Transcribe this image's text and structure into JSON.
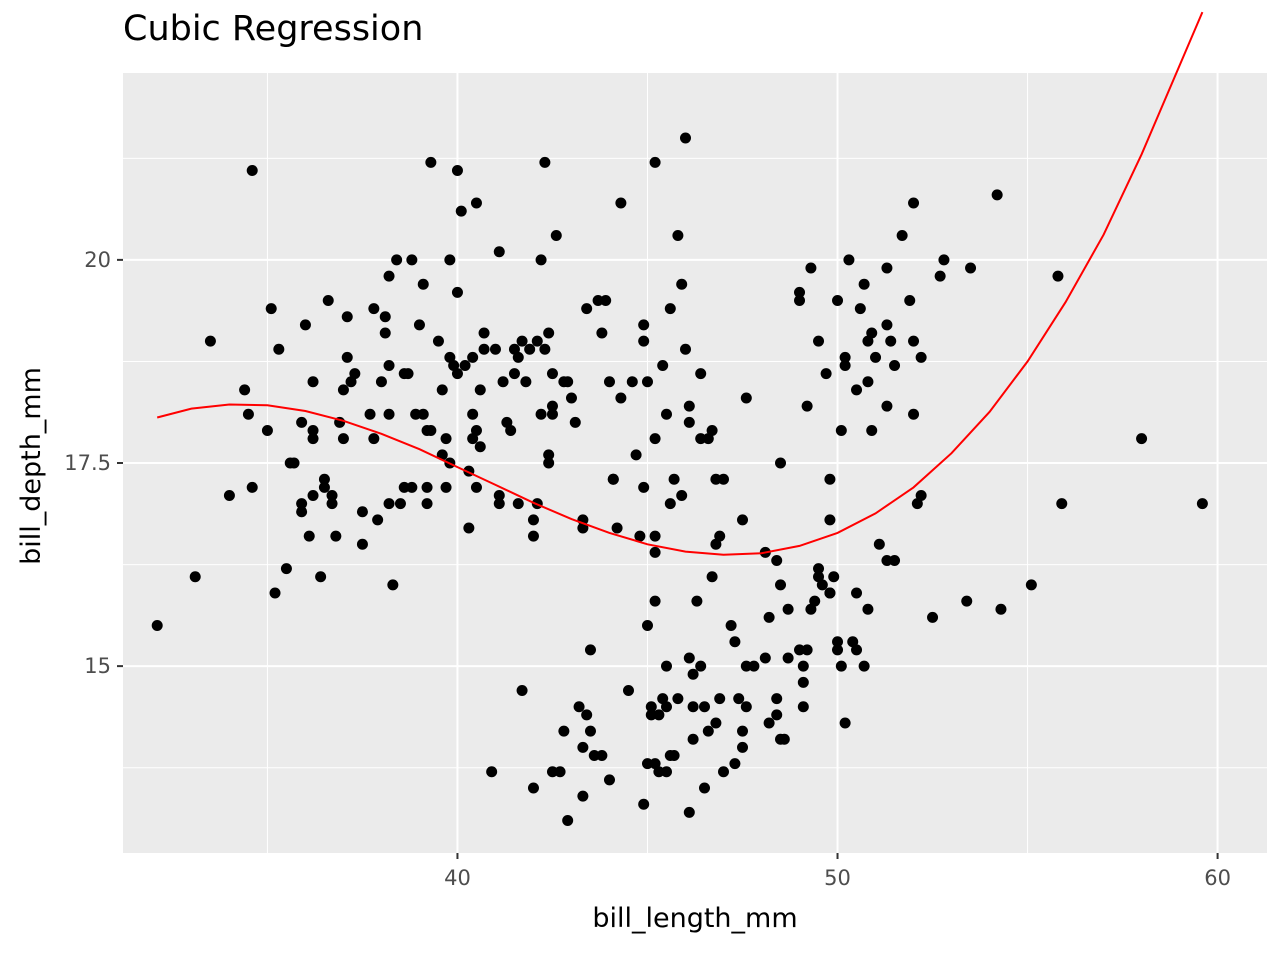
{
  "chart_data": {
    "type": "scatter",
    "title": "Cubic Regression",
    "xlabel": "bill_length_mm",
    "ylabel": "bill_depth_mm",
    "xlim": [
      31.2,
      61.3
    ],
    "ylim": [
      12.7,
      22.3
    ],
    "xticks": [
      40,
      50,
      60
    ],
    "xtick_labels": [
      "40",
      "50",
      "60"
    ],
    "yticks": [
      15,
      17.5,
      20
    ],
    "ytick_labels": [
      "15",
      "17.5",
      "20"
    ],
    "grid": true,
    "legend": "none",
    "colors": {
      "panel": "#ebebeb",
      "grid": "#ffffff",
      "points": "#000000",
      "fit_line": "#ff0000"
    },
    "points": [
      [
        32.1,
        15.5
      ],
      [
        33.1,
        16.1
      ],
      [
        33.5,
        19.0
      ],
      [
        34.0,
        17.1
      ],
      [
        34.4,
        18.4
      ],
      [
        34.5,
        18.1
      ],
      [
        34.6,
        21.1
      ],
      [
        34.6,
        17.2
      ],
      [
        35.0,
        17.9
      ],
      [
        35.1,
        19.4
      ],
      [
        35.2,
        15.9
      ],
      [
        35.3,
        18.9
      ],
      [
        35.5,
        16.2
      ],
      [
        35.6,
        17.5
      ],
      [
        35.7,
        17.5
      ],
      [
        35.9,
        16.9
      ],
      [
        35.9,
        17.0
      ],
      [
        35.9,
        18.0
      ],
      [
        36.0,
        19.2
      ],
      [
        36.1,
        16.6
      ],
      [
        36.2,
        17.8
      ],
      [
        36.2,
        17.9
      ],
      [
        36.2,
        18.5
      ],
      [
        36.2,
        17.1
      ],
      [
        36.4,
        16.1
      ],
      [
        36.5,
        17.3
      ],
      [
        36.5,
        17.2
      ],
      [
        36.6,
        19.5
      ],
      [
        36.7,
        17.1
      ],
      [
        36.7,
        17.0
      ],
      [
        36.8,
        16.6
      ],
      [
        36.9,
        18.0
      ],
      [
        37.0,
        17.8
      ],
      [
        37.0,
        18.4
      ],
      [
        37.1,
        19.3
      ],
      [
        37.1,
        18.8
      ],
      [
        37.2,
        18.5
      ],
      [
        37.3,
        18.6
      ],
      [
        37.5,
        16.5
      ],
      [
        37.5,
        16.9
      ],
      [
        37.7,
        18.1
      ],
      [
        37.8,
        19.4
      ],
      [
        37.9,
        16.8
      ],
      [
        37.8,
        17.8
      ],
      [
        38.0,
        18.5
      ],
      [
        38.1,
        19.3
      ],
      [
        38.1,
        19.1
      ],
      [
        38.2,
        17.0
      ],
      [
        38.2,
        18.7
      ],
      [
        38.3,
        16.0
      ],
      [
        38.2,
        19.8
      ],
      [
        38.2,
        18.1
      ],
      [
        38.4,
        20.0
      ],
      [
        38.5,
        17.0
      ],
      [
        38.6,
        17.2
      ],
      [
        38.6,
        18.6
      ],
      [
        38.7,
        18.6
      ],
      [
        38.8,
        17.2
      ],
      [
        38.8,
        20.0
      ],
      [
        38.9,
        18.1
      ],
      [
        39.0,
        19.2
      ],
      [
        39.1,
        18.1
      ],
      [
        39.2,
        17.9
      ],
      [
        39.2,
        17.2
      ],
      [
        39.2,
        17.0
      ],
      [
        39.3,
        21.2
      ],
      [
        39.3,
        17.9
      ],
      [
        39.5,
        19.0
      ],
      [
        39.6,
        17.6
      ],
      [
        39.6,
        18.4
      ],
      [
        39.7,
        17.8
      ],
      [
        39.7,
        17.2
      ],
      [
        39.8,
        20.0
      ],
      [
        39.8,
        17.5
      ],
      [
        39.8,
        18.8
      ],
      [
        39.9,
        18.7
      ],
      [
        40.0,
        18.6
      ],
      [
        40.0,
        19.6
      ],
      [
        40.0,
        21.1
      ],
      [
        40.1,
        20.6
      ],
      [
        40.2,
        18.7
      ],
      [
        40.3,
        17.4
      ],
      [
        40.3,
        16.7
      ],
      [
        40.4,
        17.8
      ],
      [
        40.4,
        18.8
      ],
      [
        40.4,
        18.1
      ],
      [
        40.5,
        20.7
      ],
      [
        40.5,
        17.2
      ],
      [
        40.5,
        17.9
      ],
      [
        40.6,
        17.7
      ],
      [
        40.6,
        18.4
      ],
      [
        40.7,
        18.9
      ],
      [
        40.7,
        19.1
      ],
      [
        41.0,
        18.9
      ],
      [
        41.1,
        20.1
      ],
      [
        41.1,
        17.1
      ],
      [
        41.1,
        17.0
      ],
      [
        41.2,
        18.5
      ],
      [
        41.3,
        18.0
      ],
      [
        41.4,
        17.9
      ],
      [
        41.5,
        18.6
      ],
      [
        41.5,
        18.9
      ],
      [
        41.6,
        17.0
      ],
      [
        41.6,
        18.8
      ],
      [
        41.7,
        19.0
      ],
      [
        41.8,
        18.5
      ],
      [
        41.9,
        18.9
      ],
      [
        42.0,
        16.8
      ],
      [
        42.0,
        16.6
      ],
      [
        42.1,
        19.0
      ],
      [
        42.1,
        17.0
      ],
      [
        42.2,
        20.0
      ],
      [
        42.3,
        18.9
      ],
      [
        42.3,
        21.2
      ],
      [
        42.4,
        19.1
      ],
      [
        42.4,
        17.6
      ],
      [
        42.4,
        17.5
      ],
      [
        42.5,
        18.2
      ],
      [
        42.5,
        18.1
      ],
      [
        42.5,
        18.6
      ],
      [
        42.6,
        20.3
      ],
      [
        42.8,
        18.5
      ],
      [
        42.9,
        18.5
      ],
      [
        43.0,
        18.3
      ],
      [
        43.1,
        18.0
      ],
      [
        43.4,
        19.4
      ],
      [
        43.7,
        19.5
      ],
      [
        43.8,
        19.1
      ],
      [
        43.9,
        19.5
      ],
      [
        44.0,
        18.5
      ],
      [
        44.1,
        17.3
      ],
      [
        44.1,
        17.3
      ],
      [
        44.2,
        16.7
      ],
      [
        44.3,
        20.7
      ],
      [
        44.3,
        18.3
      ],
      [
        44.6,
        18.5
      ],
      [
        44.7,
        17.6
      ],
      [
        44.8,
        16.6
      ],
      [
        44.9,
        19.2
      ],
      [
        44.9,
        19.0
      ],
      [
        45.0,
        18.5
      ],
      [
        45.2,
        21.2
      ],
      [
        45.5,
        18.1
      ],
      [
        45.9,
        19.7
      ],
      [
        46.1,
        18.0
      ],
      [
        46.8,
        17.3
      ],
      [
        41.7,
        14.7
      ],
      [
        42.0,
        13.5
      ],
      [
        42.5,
        13.7
      ],
      [
        42.7,
        13.7
      ],
      [
        42.8,
        14.2
      ],
      [
        42.9,
        13.1
      ],
      [
        43.2,
        14.5
      ],
      [
        43.3,
        13.4
      ],
      [
        43.3,
        14.0
      ],
      [
        43.4,
        14.4
      ],
      [
        43.5,
        14.2
      ],
      [
        43.5,
        15.2
      ],
      [
        43.6,
        13.9
      ],
      [
        43.8,
        13.9
      ],
      [
        44.0,
        13.6
      ],
      [
        44.5,
        14.7
      ],
      [
        44.9,
        13.3
      ],
      [
        45.0,
        13.8
      ],
      [
        45.1,
        14.5
      ],
      [
        45.1,
        14.4
      ],
      [
        45.2,
        15.8
      ],
      [
        45.2,
        13.8
      ],
      [
        45.3,
        13.7
      ],
      [
        45.4,
        14.6
      ],
      [
        45.5,
        13.7
      ],
      [
        45.5,
        15.0
      ],
      [
        45.6,
        13.9
      ],
      [
        45.7,
        13.9
      ],
      [
        45.8,
        14.6
      ],
      [
        46.1,
        15.1
      ],
      [
        46.2,
        14.5
      ],
      [
        46.2,
        14.1
      ],
      [
        46.4,
        15.0
      ],
      [
        46.5,
        14.5
      ],
      [
        46.5,
        13.5
      ],
      [
        46.6,
        14.2
      ],
      [
        46.8,
        14.3
      ],
      [
        46.9,
        14.6
      ],
      [
        47.0,
        13.7
      ],
      [
        47.2,
        15.5
      ],
      [
        47.3,
        15.3
      ],
      [
        47.4,
        14.6
      ],
      [
        47.5,
        14.2
      ],
      [
        47.5,
        14.0
      ],
      [
        47.6,
        14.5
      ],
      [
        47.6,
        15.0
      ],
      [
        47.8,
        15.0
      ],
      [
        48.1,
        15.1
      ],
      [
        48.2,
        14.3
      ],
      [
        48.4,
        14.6
      ],
      [
        48.4,
        14.4
      ],
      [
        48.5,
        14.1
      ],
      [
        48.6,
        14.1
      ],
      [
        48.7,
        15.1
      ],
      [
        48.7,
        15.7
      ],
      [
        49.0,
        15.2
      ],
      [
        49.1,
        15.0
      ],
      [
        49.1,
        14.8
      ],
      [
        49.1,
        14.5
      ],
      [
        49.2,
        15.2
      ],
      [
        49.3,
        15.7
      ],
      [
        49.4,
        15.8
      ],
      [
        49.5,
        16.2
      ],
      [
        49.5,
        16.1
      ],
      [
        49.6,
        16.0
      ],
      [
        49.8,
        15.9
      ],
      [
        49.9,
        16.1
      ],
      [
        50.0,
        15.2
      ],
      [
        50.0,
        15.3
      ],
      [
        50.1,
        15.0
      ],
      [
        50.2,
        14.3
      ],
      [
        50.4,
        15.3
      ],
      [
        50.5,
        15.2
      ],
      [
        50.5,
        15.9
      ],
      [
        50.7,
        15.0
      ],
      [
        50.8,
        15.7
      ],
      [
        51.1,
        16.5
      ],
      [
        51.3,
        16.3
      ],
      [
        51.5,
        16.3
      ],
      [
        52.5,
        15.6
      ],
      [
        53.4,
        15.8
      ],
      [
        54.3,
        15.7
      ],
      [
        55.1,
        16.0
      ],
      [
        45.8,
        20.3
      ],
      [
        46.0,
        21.5
      ],
      [
        45.6,
        19.4
      ],
      [
        46.7,
        17.9
      ],
      [
        46.9,
        16.6
      ],
      [
        47.5,
        16.8
      ],
      [
        47.6,
        18.3
      ],
      [
        48.5,
        17.5
      ],
      [
        48.1,
        16.4
      ],
      [
        48.4,
        16.3
      ],
      [
        48.5,
        16.0
      ],
      [
        49.0,
        19.5
      ],
      [
        49.0,
        19.6
      ],
      [
        49.2,
        18.2
      ],
      [
        49.3,
        19.9
      ],
      [
        49.5,
        19.0
      ],
      [
        49.7,
        18.6
      ],
      [
        49.8,
        17.3
      ],
      [
        49.8,
        16.8
      ],
      [
        50.0,
        19.5
      ],
      [
        50.1,
        17.9
      ],
      [
        50.2,
        18.8
      ],
      [
        50.2,
        18.7
      ],
      [
        50.3,
        20.0
      ],
      [
        50.5,
        18.4
      ],
      [
        50.6,
        19.4
      ],
      [
        50.7,
        19.7
      ],
      [
        50.8,
        18.5
      ],
      [
        50.8,
        19.0
      ],
      [
        50.9,
        17.9
      ],
      [
        50.9,
        19.1
      ],
      [
        51.0,
        18.8
      ],
      [
        51.3,
        18.2
      ],
      [
        51.3,
        19.2
      ],
      [
        51.3,
        19.9
      ],
      [
        51.4,
        19.0
      ],
      [
        51.5,
        18.7
      ],
      [
        51.7,
        20.3
      ],
      [
        51.9,
        19.5
      ],
      [
        52.0,
        18.1
      ],
      [
        52.0,
        19.0
      ],
      [
        52.0,
        20.7
      ],
      [
        52.1,
        17.0
      ],
      [
        52.2,
        18.8
      ],
      [
        52.2,
        17.1
      ],
      [
        52.7,
        19.8
      ],
      [
        52.8,
        20.0
      ],
      [
        53.5,
        19.9
      ],
      [
        54.2,
        20.8
      ],
      [
        55.8,
        19.8
      ],
      [
        55.9,
        17.0
      ],
      [
        58.0,
        17.8
      ],
      [
        59.6,
        17.0
      ],
      [
        45.2,
        17.8
      ],
      [
        45.2,
        16.6
      ],
      [
        45.4,
        18.7
      ],
      [
        45.6,
        17.0
      ],
      [
        45.7,
        17.3
      ],
      [
        45.9,
        17.1
      ],
      [
        46.0,
        18.9
      ],
      [
        46.1,
        18.2
      ],
      [
        46.4,
        17.8
      ],
      [
        46.4,
        18.6
      ],
      [
        46.6,
        17.8
      ],
      [
        46.7,
        16.1
      ],
      [
        46.8,
        16.5
      ],
      [
        47.0,
        17.3
      ],
      [
        49.8,
        15.9
      ],
      [
        47.3,
        13.8
      ],
      [
        45.3,
        14.4
      ],
      [
        45.5,
        14.5
      ],
      [
        46.2,
        14.9
      ],
      [
        45.0,
        15.5
      ],
      [
        46.3,
        15.8
      ],
      [
        45.2,
        16.4
      ],
      [
        48.2,
        15.6
      ],
      [
        44.9,
        17.2
      ],
      [
        46.1,
        13.2
      ],
      [
        40.9,
        13.7
      ],
      [
        43.3,
        16.7
      ],
      [
        43.3,
        16.8
      ],
      [
        42.2,
        18.1
      ],
      [
        39.1,
        19.7
      ]
    ],
    "fit_line": {
      "x": [
        32.1,
        33.0,
        34.0,
        35.0,
        36.0,
        37.0,
        38.0,
        39.0,
        40.0,
        41.0,
        42.0,
        43.0,
        44.0,
        45.0,
        46.0,
        47.0,
        48.0,
        49.0,
        50.0,
        51.0,
        52.0,
        53.0,
        54.0,
        55.0,
        56.0,
        57.0,
        58.0,
        59.6
      ],
      "y": [
        18.06,
        18.17,
        18.22,
        18.21,
        18.14,
        18.02,
        17.86,
        17.67,
        17.45,
        17.23,
        17.01,
        16.81,
        16.64,
        16.5,
        16.41,
        16.37,
        16.39,
        16.48,
        16.64,
        16.88,
        17.2,
        17.62,
        18.13,
        18.75,
        19.48,
        20.31,
        21.3,
        23.05
      ]
    }
  }
}
